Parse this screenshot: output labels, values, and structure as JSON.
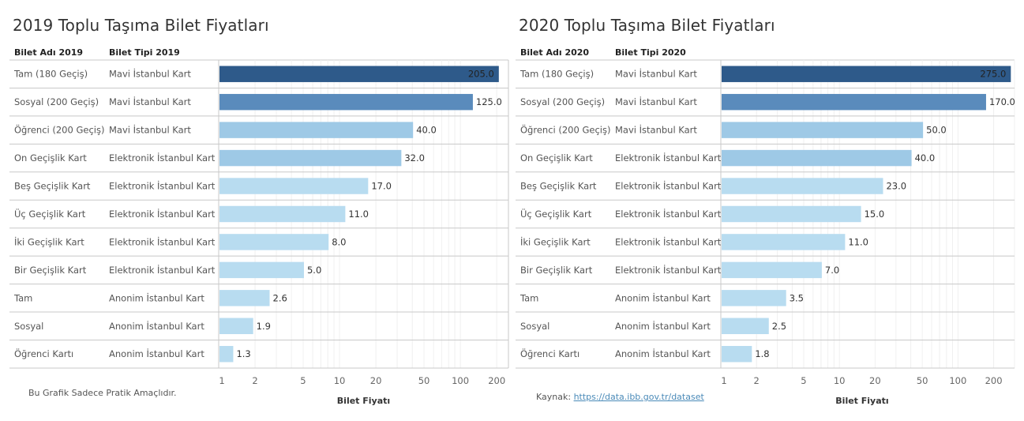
{
  "footnote": "Bu Grafik Sadece Pratik Amaçlıdır.",
  "source": {
    "label": "Kaynak:",
    "url": "https://data.ibb.gov.tr/dataset"
  },
  "colors": {
    "tier1": "#2e5a8a",
    "tier2": "#5a8bbc",
    "tier3": "#9ec9e6",
    "tier4": "#b8dcf0",
    "grid": "#e8e8e8",
    "border": "#c8c8c8"
  },
  "chart_data": [
    {
      "type": "bar",
      "title": "2019 Toplu Taşıma Bilet Fiyatları",
      "col1_header": "Bilet Adı 2019",
      "col2_header": "Bilet Tipi 2019",
      "xlabel": "Bilet Fiyatı",
      "x_scale": "log",
      "xlim": [
        1,
        250
      ],
      "x_ticks": [
        1,
        2,
        5,
        10,
        20,
        50,
        100,
        200
      ],
      "rows": [
        {
          "name": "Tam (180 Geçiş)",
          "type": "Mavi İstanbul Kart",
          "value": 205.0,
          "label": "205.0",
          "tier": 1
        },
        {
          "name": "Sosyal (200 Geçiş)",
          "type": "Mavi İstanbul Kart",
          "value": 125.0,
          "label": "125.0",
          "tier": 2
        },
        {
          "name": "Öğrenci (200 Geçiş)",
          "type": "Mavi İstanbul Kart",
          "value": 40.0,
          "label": "40.0",
          "tier": 3
        },
        {
          "name": "On Geçişlik Kart",
          "type": "Elektronik İstanbul Kart",
          "value": 32.0,
          "label": "32.0",
          "tier": 3
        },
        {
          "name": "Beş Geçişlik Kart",
          "type": "Elektronik İstanbul Kart",
          "value": 17.0,
          "label": "17.0",
          "tier": 4
        },
        {
          "name": "Üç Geçişlik Kart",
          "type": "Elektronik İstanbul Kart",
          "value": 11.0,
          "label": "11.0",
          "tier": 4
        },
        {
          "name": "İki Geçişlik Kart",
          "type": "Elektronik İstanbul Kart",
          "value": 8.0,
          "label": "8.0",
          "tier": 4
        },
        {
          "name": "Bir Geçişlik Kart",
          "type": "Elektronik İstanbul Kart",
          "value": 5.0,
          "label": "5.0",
          "tier": 4
        },
        {
          "name": "Tam",
          "type": "Anonim İstanbul Kart",
          "value": 2.6,
          "label": "2.6",
          "tier": 4
        },
        {
          "name": "Sosyal",
          "type": "Anonim İstanbul Kart",
          "value": 1.9,
          "label": "1.9",
          "tier": 4
        },
        {
          "name": "Öğrenci Kartı",
          "type": "Anonim İstanbul Kart",
          "value": 1.3,
          "label": "1.3",
          "tier": 4
        }
      ]
    },
    {
      "type": "bar",
      "title": "2020 Toplu Taşıma Bilet Fiyatları",
      "col1_header": "Bilet Adı 2020",
      "col2_header": "Bilet Tipi 2020",
      "xlabel": "Bilet Fiyatı",
      "x_scale": "log",
      "xlim": [
        1,
        300
      ],
      "x_ticks": [
        1,
        2,
        5,
        10,
        20,
        50,
        100,
        200
      ],
      "rows": [
        {
          "name": "Tam (180 Geçiş)",
          "type": "Mavi İstanbul Kart",
          "value": 275.0,
          "label": "275.0",
          "tier": 1
        },
        {
          "name": "Sosyal (200 Geçiş)",
          "type": "Mavi İstanbul Kart",
          "value": 170.0,
          "label": "170.0",
          "tier": 2
        },
        {
          "name": "Öğrenci (200 Geçiş)",
          "type": "Mavi İstanbul Kart",
          "value": 50.0,
          "label": "50.0",
          "tier": 3
        },
        {
          "name": "On Geçişlik Kart",
          "type": "Elektronik İstanbul Kart",
          "value": 40.0,
          "label": "40.0",
          "tier": 3
        },
        {
          "name": "Beş Geçişlik Kart",
          "type": "Elektronik İstanbul Kart",
          "value": 23.0,
          "label": "23.0",
          "tier": 4
        },
        {
          "name": "Üç Geçişlik Kart",
          "type": "Elektronik İstanbul Kart",
          "value": 15.0,
          "label": "15.0",
          "tier": 4
        },
        {
          "name": "İki Geçişlik Kart",
          "type": "Elektronik İstanbul Kart",
          "value": 11.0,
          "label": "11.0",
          "tier": 4
        },
        {
          "name": "Bir Geçişlik Kart",
          "type": "Elektronik İstanbul Kart",
          "value": 7.0,
          "label": "7.0",
          "tier": 4
        },
        {
          "name": "Tam",
          "type": "Anonim İstanbul Kart",
          "value": 3.5,
          "label": "3.5",
          "tier": 4
        },
        {
          "name": "Sosyal",
          "type": "Anonim İstanbul Kart",
          "value": 2.5,
          "label": "2.5",
          "tier": 4
        },
        {
          "name": "Öğrenci Kartı",
          "type": "Anonim İstanbul Kart",
          "value": 1.8,
          "label": "1.8",
          "tier": 4
        }
      ]
    }
  ]
}
